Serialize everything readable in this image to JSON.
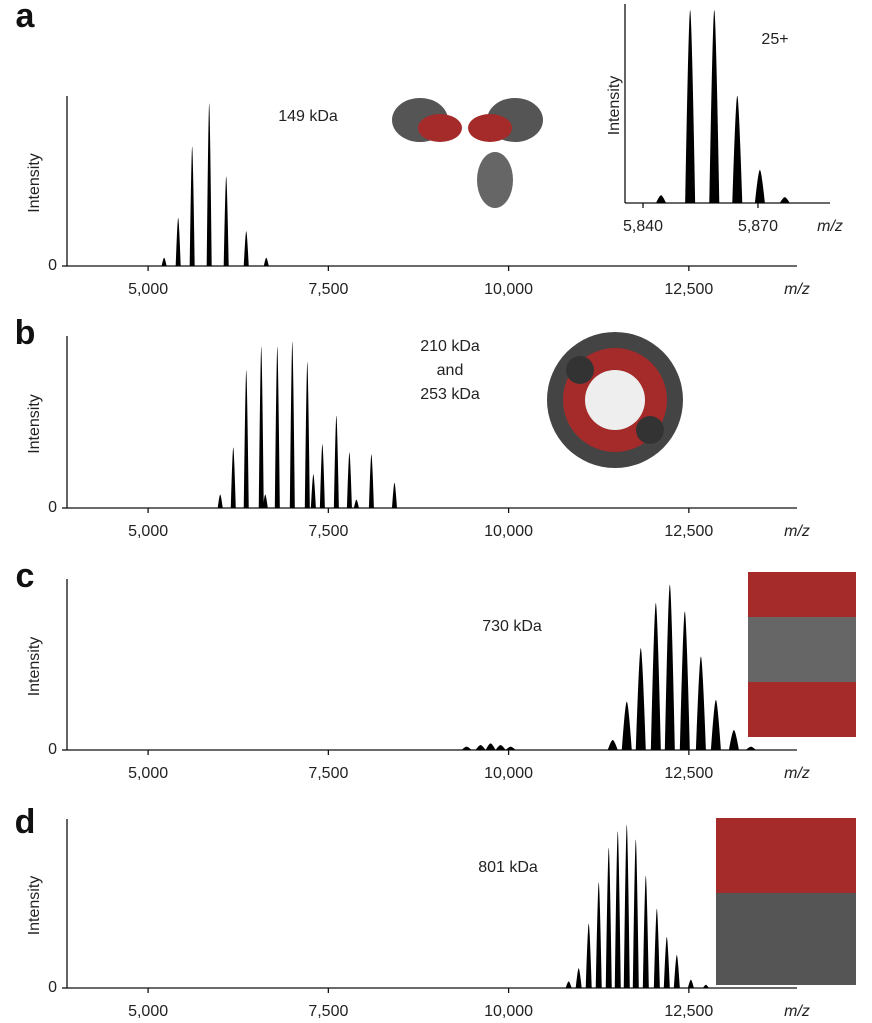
{
  "chart_data": [
    {
      "type": "spectrum",
      "label": "a",
      "annotations": [
        "149 kDa"
      ],
      "y_label": "Intensity",
      "x_label": "m/z",
      "color": "#000000",
      "x": [
        5222,
        5417,
        5611,
        5847,
        6083,
        6361,
        6639
      ],
      "values": [
        0.05,
        0.29,
        0.72,
        0.98,
        0.54,
        0.21,
        0.05
      ],
      "xlim": [
        3875,
        14000
      ],
      "ylim": [
        0,
        1
      ],
      "xticks": [
        {
          "value": 5000,
          "label": "5,000"
        },
        {
          "value": 7500,
          "label": "7,500"
        },
        {
          "value": 10000,
          "label": "10,000"
        },
        {
          "value": 12500,
          "label": "12,500"
        }
      ],
      "yticks": [
        0
      ]
    },
    {
      "type": "spectrum",
      "annotations": [
        "25+"
      ],
      "y_label": "Intensity",
      "x_label": "m/z",
      "color": "#000000",
      "x": [
        5844.7,
        5852.3,
        5858.6,
        5864.6,
        5870.5,
        5877
      ],
      "values": [
        0.04,
        0.99,
        0.99,
        0.55,
        0.17,
        0.03
      ],
      "xlim": [
        5835.3,
        5888.8
      ],
      "ylim": [
        0,
        1
      ],
      "xticks": [
        {
          "value": 5840,
          "label": "5,840"
        },
        {
          "value": 5870,
          "label": "5,870"
        }
      ]
    },
    {
      "type": "spectrum",
      "label": "b",
      "annotations": [
        "210 kDa",
        "and",
        "253 kDa"
      ],
      "y_label": "Intensity",
      "x_label": "m/z",
      "color": "#000000",
      "x": [
        6000,
        6181,
        6361,
        6569,
        6625,
        6792,
        7000,
        7208,
        7292,
        7417,
        7611,
        7792,
        7889,
        8097,
        8417
      ],
      "values": [
        0.08,
        0.36,
        0.82,
        0.96,
        0.08,
        0.96,
        0.99,
        0.87,
        0.2,
        0.38,
        0.55,
        0.33,
        0.05,
        0.32,
        0.15
      ],
      "xlim": [
        3875,
        14000
      ],
      "ylim": [
        0,
        1
      ],
      "xticks": [
        {
          "value": 5000,
          "label": "5,000"
        },
        {
          "value": 7500,
          "label": "7,500"
        },
        {
          "value": 10000,
          "label": "10,000"
        },
        {
          "value": 12500,
          "label": "12,500"
        }
      ],
      "yticks": [
        0
      ]
    },
    {
      "type": "spectrum",
      "label": "c",
      "annotations": [
        "730 kDa"
      ],
      "y_label": "Intensity",
      "x_label": "m/z",
      "color": "#000000",
      "x": [
        9417,
        9611,
        9750,
        9889,
        10028,
        11444,
        11639,
        11833,
        12042,
        12236,
        12444,
        12667,
        12875,
        13125,
        13361
      ],
      "values": [
        0.02,
        0.03,
        0.04,
        0.03,
        0.02,
        0.06,
        0.29,
        0.61,
        0.88,
        0.99,
        0.83,
        0.56,
        0.3,
        0.12,
        0.02
      ],
      "xlim": [
        3875,
        14000
      ],
      "ylim": [
        0,
        1
      ],
      "xticks": [
        {
          "value": 5000,
          "label": "5,000"
        },
        {
          "value": 7500,
          "label": "7,500"
        },
        {
          "value": 10000,
          "label": "10,000"
        },
        {
          "value": 12500,
          "label": "12,500"
        }
      ],
      "yticks": [
        0
      ]
    },
    {
      "type": "spectrum",
      "label": "d",
      "annotations": [
        "801 kDa"
      ],
      "y_label": "Intensity",
      "x_label": "m/z",
      "color": "#000000",
      "x": [
        10833,
        10972,
        11111,
        11250,
        11389,
        11514,
        11639,
        11764,
        11903,
        12056,
        12194,
        12333,
        12528,
        12736
      ],
      "values": [
        0.04,
        0.12,
        0.39,
        0.64,
        0.85,
        0.95,
        0.99,
        0.9,
        0.68,
        0.48,
        0.31,
        0.2,
        0.05,
        0.02
      ],
      "xlim": [
        3875,
        14000
      ],
      "ylim": [
        0,
        1
      ],
      "xticks": [
        {
          "value": 5000,
          "label": "5,000"
        },
        {
          "value": 7500,
          "label": "7,500"
        },
        {
          "value": 10000,
          "label": "10,000"
        },
        {
          "value": 12500,
          "label": "12,500"
        }
      ],
      "yticks": [
        0
      ]
    }
  ]
}
